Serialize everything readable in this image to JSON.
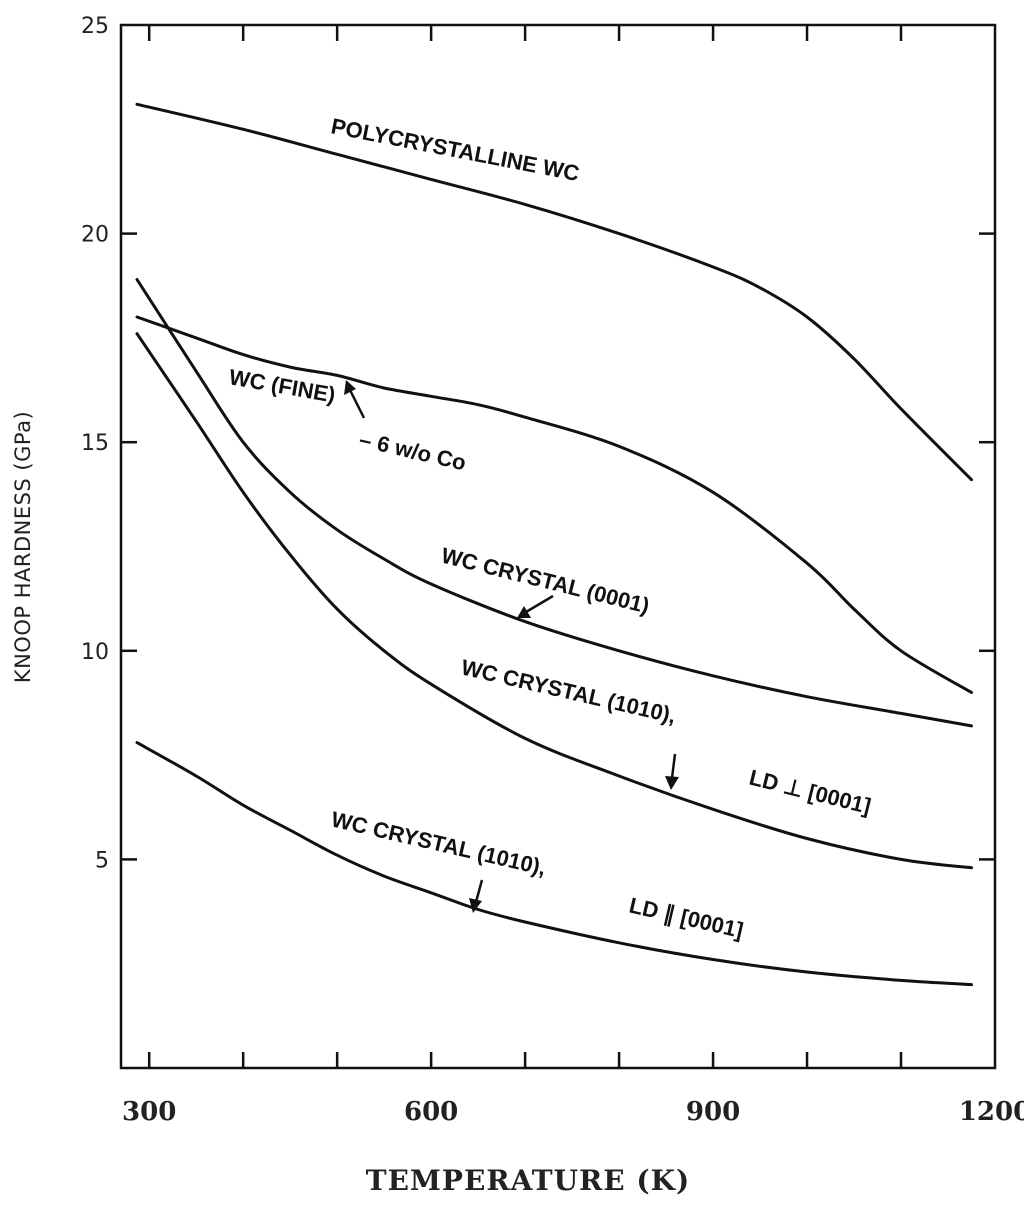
{
  "chart_data": {
    "type": "line",
    "title": "",
    "xlabel": "TEMPERATURE (K)",
    "ylabel": "KNOOP HARDNESS (GPa)",
    "xlim": [
      270,
      1200
    ],
    "ylim": [
      0,
      25
    ],
    "x_ticks": [
      300,
      600,
      900,
      1200
    ],
    "x_minor_ticks": [
      300,
      400,
      500,
      600,
      700,
      800,
      900,
      1000,
      1100
    ],
    "y_ticks": [
      5,
      10,
      15,
      20,
      25
    ],
    "grid": false,
    "legend": "none",
    "series": [
      {
        "name": "POLYCRYSTALLINE WC",
        "label_lines": [
          "POLYCRYSTALLINE WC"
        ],
        "x": [
          287,
          400,
          500,
          600,
          700,
          800,
          900,
          950,
          1000,
          1050,
          1100,
          1175
        ],
        "y": [
          23.1,
          22.5,
          21.9,
          21.3,
          20.7,
          20.0,
          19.2,
          18.7,
          18.0,
          17.0,
          15.8,
          14.1
        ]
      },
      {
        "name": "WC (FINE) – 6 w/o Co",
        "label_lines": [
          "WC (FINE)",
          "– 6 w/o Co"
        ],
        "x": [
          287,
          350,
          400,
          450,
          500,
          550,
          600,
          650,
          700,
          800,
          900,
          1000,
          1050,
          1100,
          1175
        ],
        "y": [
          18.0,
          17.5,
          17.1,
          16.8,
          16.6,
          16.3,
          16.1,
          15.9,
          15.6,
          14.9,
          13.8,
          12.1,
          11.0,
          10.0,
          9.0
        ]
      },
      {
        "name": "WC CRYSTAL (0001)",
        "label_lines": [
          "WC CRYSTAL (0001)"
        ],
        "x": [
          287,
          350,
          400,
          450,
          500,
          550,
          600,
          700,
          800,
          900,
          1000,
          1100,
          1175
        ],
        "y": [
          18.9,
          16.7,
          15.0,
          13.8,
          12.9,
          12.2,
          11.6,
          10.7,
          10.0,
          9.4,
          8.9,
          8.5,
          8.2
        ]
      },
      {
        "name": "WC CRYSTAL (1010), LD ⊥ [0001]",
        "label_lines": [
          "WC CRYSTAL (1010),",
          "LD ⊥ [0001]"
        ],
        "x": [
          287,
          350,
          400,
          450,
          500,
          550,
          600,
          700,
          800,
          900,
          1000,
          1100,
          1175
        ],
        "y": [
          17.6,
          15.5,
          13.8,
          12.3,
          11.0,
          10.0,
          9.2,
          7.9,
          7.0,
          6.2,
          5.5,
          5.0,
          4.8
        ]
      },
      {
        "name": "WC CRYSTAL (1010), LD ∥ [0001]",
        "label_lines": [
          "WC CRYSTAL (1010),",
          "LD ∥ [0001]"
        ],
        "x": [
          287,
          350,
          400,
          450,
          500,
          550,
          600,
          650,
          700,
          800,
          900,
          1000,
          1100,
          1175
        ],
        "y": [
          7.8,
          7.0,
          6.3,
          5.7,
          5.1,
          4.6,
          4.2,
          3.8,
          3.5,
          3.0,
          2.6,
          2.3,
          2.1,
          2.0
        ]
      }
    ]
  }
}
